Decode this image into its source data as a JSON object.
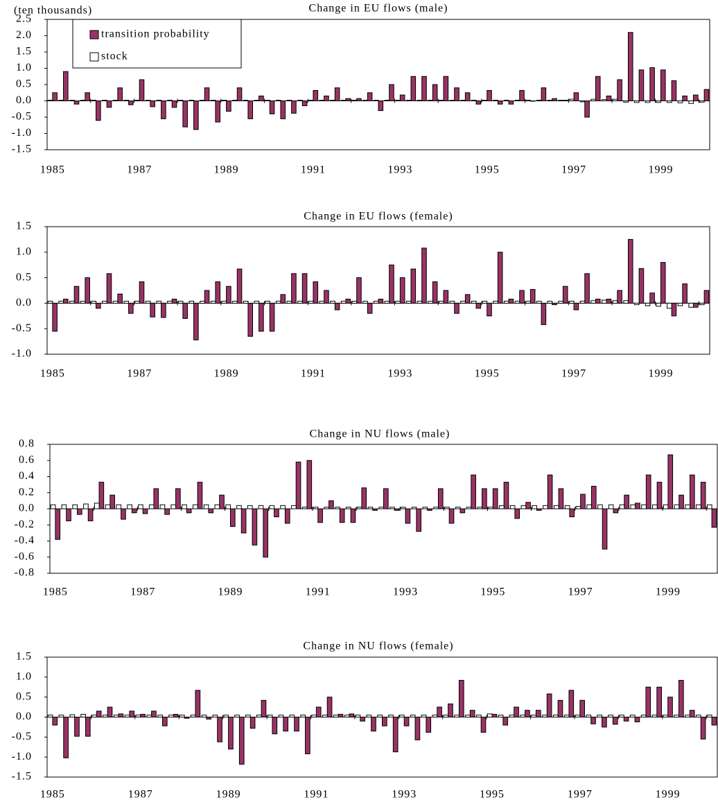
{
  "chart_data": [
    {
      "type": "bar",
      "title": "Change in EU flows (male)",
      "y_label": "(ten thousands)",
      "categories": [
        "1985",
        null,
        null,
        null,
        null,
        null,
        null,
        null,
        "1987",
        null,
        null,
        null,
        null,
        null,
        null,
        null,
        "1989",
        null,
        null,
        null,
        null,
        null,
        null,
        null,
        "1991",
        null,
        null,
        null,
        null,
        null,
        null,
        null,
        "1993",
        null,
        null,
        null,
        null,
        null,
        null,
        null,
        "1995",
        null,
        null,
        null,
        null,
        null,
        null,
        null,
        "1997",
        null,
        null,
        null,
        null,
        null,
        null,
        null,
        "1999",
        null,
        null,
        null,
        null
      ],
      "series": [
        {
          "name": "transition probability",
          "color": "#993366",
          "values": [
            0.25,
            0.9,
            -0.1,
            0.25,
            -0.6,
            -0.2,
            0.4,
            -0.12,
            0.65,
            -0.18,
            -0.55,
            -0.2,
            -0.8,
            -0.88,
            0.4,
            -0.65,
            -0.32,
            0.4,
            -0.55,
            0.15,
            -0.4,
            -0.55,
            -0.38,
            -0.15,
            0.32,
            0.15,
            0.4,
            0.07,
            0.07,
            0.25,
            -0.3,
            0.5,
            0.18,
            0.75,
            0.75,
            0.5,
            0.75,
            0.4,
            0.25,
            -0.1,
            0.32,
            -0.1,
            -0.1,
            0.32,
            0.0,
            0.4,
            0.07,
            0.02,
            0.25,
            -0.5,
            0.75,
            0.15,
            0.65,
            2.1,
            0.95,
            1.02,
            0.95,
            0.62,
            0.15,
            0.18,
            0.35
          ]
        },
        {
          "name": "stock",
          "color": "#ffffff",
          "values": [
            0.02,
            0.02,
            0.02,
            0.02,
            0.02,
            0.02,
            0.02,
            0.02,
            0.02,
            0.02,
            0.02,
            0.02,
            0.02,
            0.02,
            0.02,
            0.02,
            0.02,
            0.02,
            0.02,
            0.02,
            0.02,
            0.02,
            0.02,
            0.02,
            0.02,
            0.02,
            0.02,
            0.02,
            0.02,
            0.02,
            0.02,
            0.02,
            0.02,
            0.02,
            0.02,
            0.02,
            0.02,
            0.02,
            0.02,
            0.02,
            0.02,
            0.02,
            0.02,
            0.02,
            0.02,
            0.02,
            0.02,
            0.02,
            0.05,
            -0.03,
            0.05,
            0.04,
            0.05,
            -0.04,
            -0.05,
            -0.05,
            -0.05,
            -0.05,
            -0.06,
            -0.08,
            -0.04
          ]
        }
      ],
      "ylim": [
        -1.5,
        2.5
      ],
      "yticks": [
        -1.5,
        {
          "value": -1,
          "label": "-1.0"
        },
        -0.5,
        {
          "value": 0,
          "label": "0.0"
        },
        0.5,
        {
          "value": 1,
          "label": "1.0"
        },
        1.5,
        {
          "value": 2,
          "label": "2.0"
        },
        2.5
      ]
    },
    {
      "type": "bar",
      "title": "Change in EU flows (female)",
      "categories": [
        "1985",
        null,
        null,
        null,
        null,
        null,
        null,
        null,
        "1987",
        null,
        null,
        null,
        null,
        null,
        null,
        null,
        "1989",
        null,
        null,
        null,
        null,
        null,
        null,
        null,
        "1991",
        null,
        null,
        null,
        null,
        null,
        null,
        null,
        "1993",
        null,
        null,
        null,
        null,
        null,
        null,
        null,
        "1995",
        null,
        null,
        null,
        null,
        null,
        null,
        null,
        "1997",
        null,
        null,
        null,
        null,
        null,
        null,
        null,
        "1999",
        null,
        null,
        null,
        null
      ],
      "series": [
        {
          "color": "#993366",
          "values": [
            -0.55,
            0.08,
            0.33,
            0.5,
            -0.1,
            0.58,
            0.18,
            -0.2,
            0.42,
            -0.27,
            -0.28,
            0.08,
            -0.3,
            -0.72,
            0.25,
            0.42,
            0.33,
            0.67,
            -0.65,
            -0.55,
            -0.55,
            0.17,
            0.58,
            0.58,
            0.42,
            0.25,
            -0.13,
            0.08,
            0.5,
            -0.2,
            0.08,
            0.75,
            0.5,
            0.67,
            1.08,
            0.42,
            0.25,
            -0.2,
            0.17,
            -0.1,
            -0.25,
            1.0,
            0.08,
            0.25,
            0.27,
            -0.42,
            -0.03,
            0.33,
            -0.13,
            0.58,
            0.08,
            0.08,
            0.25,
            1.25,
            0.68,
            0.2,
            0.8,
            -0.25,
            0.38,
            -0.08,
            0.25
          ]
        },
        {
          "color": "#ffffff",
          "values": [
            0.04,
            0.04,
            0.04,
            0.04,
            0.04,
            0.04,
            0.04,
            0.04,
            0.04,
            0.04,
            0.04,
            0.04,
            0.04,
            0.04,
            0.04,
            0.04,
            0.04,
            0.04,
            0.04,
            0.04,
            0.04,
            0.04,
            0.04,
            0.04,
            0.04,
            0.04,
            0.04,
            0.04,
            0.04,
            0.04,
            0.04,
            0.04,
            0.04,
            0.04,
            0.04,
            0.04,
            0.04,
            0.04,
            0.04,
            0.04,
            0.04,
            0.04,
            0.04,
            0.04,
            0.04,
            0.04,
            0.04,
            0.04,
            0.04,
            0.04,
            0.05,
            0.06,
            0.05,
            0.05,
            -0.03,
            -0.05,
            -0.06,
            -0.1,
            -0.05,
            -0.08,
            -0.03
          ]
        }
      ],
      "ylim": [
        -1,
        1.5
      ],
      "yticks": [
        {
          "value": -1,
          "label": "-1.0"
        },
        -0.5,
        {
          "value": 0,
          "label": "0.0"
        },
        0.5,
        {
          "value": 1,
          "label": "1.0"
        },
        1.5
      ]
    },
    {
      "type": "bar",
      "title": "Change in NU flows (male)",
      "categories": [
        "1985",
        null,
        null,
        null,
        null,
        null,
        null,
        null,
        "1987",
        null,
        null,
        null,
        null,
        null,
        null,
        null,
        "1989",
        null,
        null,
        null,
        null,
        null,
        null,
        null,
        "1991",
        null,
        null,
        null,
        null,
        null,
        null,
        null,
        "1993",
        null,
        null,
        null,
        null,
        null,
        null,
        null,
        "1995",
        null,
        null,
        null,
        null,
        null,
        null,
        null,
        "1997",
        null,
        null,
        null,
        null,
        null,
        null,
        null,
        "1999",
        null,
        null,
        null,
        null
      ],
      "series": [
        {
          "color": "#993366",
          "values": [
            -0.38,
            -0.15,
            -0.07,
            -0.15,
            0.33,
            0.17,
            -0.13,
            -0.05,
            -0.06,
            0.25,
            -0.07,
            0.25,
            -0.05,
            0.33,
            -0.05,
            0.17,
            -0.22,
            -0.3,
            -0.45,
            -0.6,
            -0.1,
            -0.18,
            0.58,
            0.6,
            -0.17,
            0.1,
            -0.17,
            -0.17,
            0.26,
            -0.02,
            0.25,
            -0.02,
            -0.18,
            -0.28,
            -0.02,
            0.25,
            -0.18,
            -0.05,
            0.42,
            0.25,
            0.25,
            0.33,
            -0.12,
            0.08,
            -0.02,
            0.42,
            0.25,
            -0.1,
            0.18,
            0.28,
            -0.5,
            -0.05,
            0.17,
            0.07,
            0.42,
            0.33,
            0.67,
            0.17,
            0.42,
            0.33,
            -0.23
          ]
        },
        {
          "color": "#ffffff",
          "values": [
            0.05,
            0.05,
            0.05,
            0.06,
            0.07,
            0.05,
            0.05,
            0.05,
            0.05,
            0.05,
            0.05,
            0.05,
            0.05,
            0.05,
            0.05,
            0.05,
            0.05,
            0.04,
            0.04,
            0.04,
            0.04,
            0.04,
            0.04,
            0.02,
            0.02,
            0.02,
            0.02,
            0.02,
            0.02,
            0.02,
            0.02,
            0.02,
            0.02,
            0.02,
            0.02,
            0.02,
            0.02,
            0.02,
            0.02,
            0.02,
            0.02,
            0.04,
            0.04,
            0.04,
            0.04,
            0.04,
            0.04,
            0.04,
            0.03,
            0.05,
            0.05,
            0.05,
            0.05,
            0.05,
            0.05,
            0.05,
            0.05,
            0.05,
            0.05,
            0.05,
            0.05
          ]
        }
      ],
      "ylim": [
        -0.8,
        0.8
      ],
      "yticks": [
        -0.8,
        -0.6,
        -0.4,
        -0.2,
        {
          "value": 0,
          "label": "0.0"
        },
        0.2,
        0.4,
        0.6,
        0.8
      ]
    },
    {
      "type": "bar",
      "title": "Change in NU flows (female)",
      "categories": [
        "1985",
        null,
        null,
        null,
        null,
        null,
        null,
        null,
        "1987",
        null,
        null,
        null,
        null,
        null,
        null,
        null,
        "1989",
        null,
        null,
        null,
        null,
        null,
        null,
        null,
        "1991",
        null,
        null,
        null,
        null,
        null,
        null,
        null,
        "1993",
        null,
        null,
        null,
        null,
        null,
        null,
        null,
        "1995",
        null,
        null,
        null,
        null,
        null,
        null,
        null,
        "1997",
        null,
        null,
        null,
        null,
        null,
        null,
        null,
        "1999",
        null,
        null,
        null,
        null
      ],
      "series": [
        {
          "color": "#993366",
          "values": [
            -0.2,
            -1.02,
            -0.48,
            -0.48,
            0.15,
            0.25,
            0.08,
            0.15,
            0.07,
            0.15,
            -0.22,
            0.07,
            -0.03,
            0.67,
            -0.05,
            -0.62,
            -0.8,
            -1.18,
            -0.28,
            0.42,
            -0.42,
            -0.35,
            -0.35,
            -0.92,
            0.25,
            0.5,
            0.07,
            0.08,
            -0.1,
            -0.35,
            -0.22,
            -0.87,
            -0.22,
            -0.57,
            -0.38,
            0.25,
            0.33,
            0.92,
            0.17,
            -0.38,
            0.07,
            -0.2,
            0.25,
            0.17,
            0.17,
            0.58,
            0.42,
            0.67,
            0.42,
            -0.17,
            -0.25,
            -0.18,
            -0.1,
            -0.12,
            0.75,
            0.75,
            0.5,
            0.92,
            0.17,
            -0.55,
            -0.2
          ]
        },
        {
          "color": "#ffffff",
          "values": [
            0.05,
            0.05,
            0.06,
            0.07,
            0.05,
            0.05,
            0.05,
            0.05,
            0.05,
            0.05,
            0.05,
            0.05,
            0.05,
            0.05,
            0.05,
            0.05,
            0.05,
            0.05,
            0.05,
            0.05,
            0.05,
            0.05,
            0.05,
            0.05,
            0.05,
            0.05,
            0.05,
            0.05,
            0.05,
            0.05,
            0.05,
            0.05,
            0.05,
            0.05,
            0.05,
            0.05,
            0.05,
            0.05,
            0.05,
            0.05,
            0.08,
            0.05,
            0.05,
            0.05,
            0.05,
            0.05,
            0.05,
            0.05,
            0.05,
            0.05,
            0.05,
            0.05,
            0.05,
            0.05,
            0.05,
            0.05,
            0.05,
            0.05,
            0.05,
            0.05,
            0.05
          ]
        }
      ],
      "ylim": [
        -1.5,
        1.5
      ],
      "yticks": [
        -1.5,
        {
          "value": -1,
          "label": "-1.0"
        },
        -0.5,
        {
          "value": 0,
          "label": "0.0"
        },
        0.5,
        {
          "value": 1,
          "label": "1.0"
        },
        1.5
      ]
    }
  ]
}
